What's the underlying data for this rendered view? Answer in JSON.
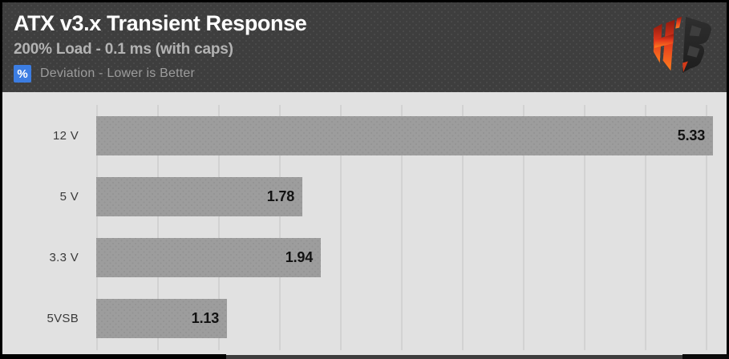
{
  "header": {
    "title": "ATX v3.x Transient Response",
    "subtitle": "200% Load - 0.1 ms (with caps)",
    "unit_badge": "%",
    "note": "Deviation - Lower is Better"
  },
  "logo": {
    "name": "hardware-busters-hb-logo"
  },
  "colors": {
    "header_background": "#3e3e3e",
    "badge_blue": "#3c7de2",
    "plot_background": "#e1e1e1",
    "gridline": "#d2d2d2",
    "bar_gray": "#9d9d9d",
    "logo_red": "#e03a1a",
    "logo_orange": "#ff7e1f"
  },
  "chart_data": {
    "type": "bar",
    "orientation": "horizontal",
    "title": "ATX v3.x Transient Response",
    "subtitle": "200% Load - 0.1 ms (with caps)",
    "unit": "%",
    "note": "Deviation - Lower is Better",
    "categories": [
      "12 V",
      "5 V",
      "3.3 V",
      "5VSB"
    ],
    "values": [
      5.33,
      1.78,
      1.94,
      1.13
    ],
    "value_labels": [
      "5.33",
      "1.78",
      "1.94",
      "1.13"
    ],
    "xlim": [
      0,
      5.47
    ],
    "grid": true,
    "legend_position": "none",
    "bar_color": "#9d9d9d",
    "sort_order": "as-listed"
  }
}
